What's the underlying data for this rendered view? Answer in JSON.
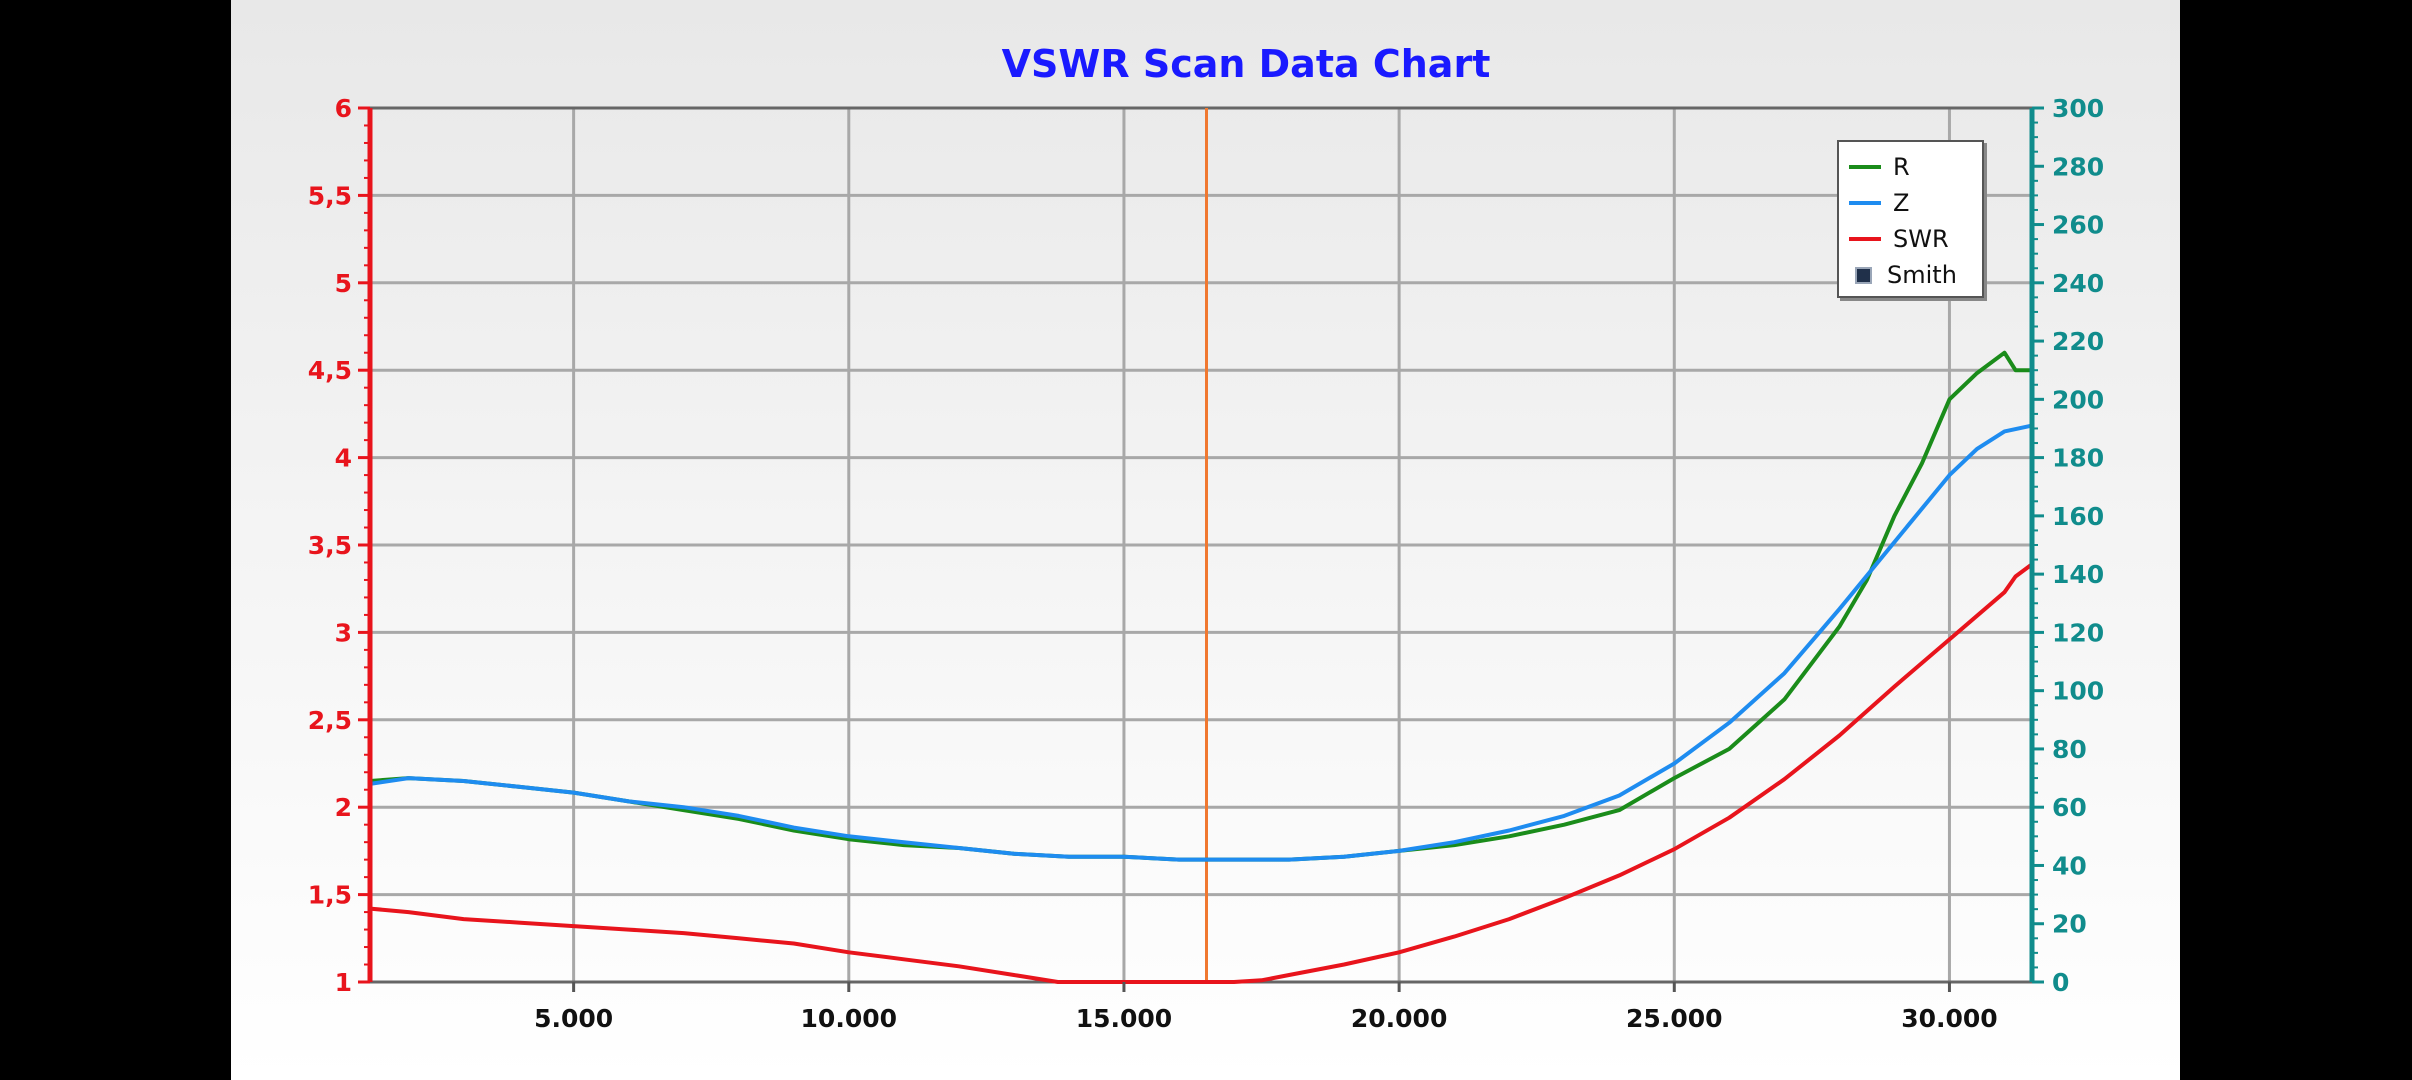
{
  "chart_data": {
    "type": "line",
    "title": "VSWR Scan Data Chart",
    "x": {
      "lim": [
        1300,
        31500
      ],
      "ticks": [
        5000,
        10000,
        15000,
        20000,
        25000,
        30000
      ],
      "tick_labels": [
        "5.000",
        "10.000",
        "15.000",
        "20.000",
        "25.000",
        "30.000"
      ]
    },
    "y_left": {
      "lim": [
        1,
        6
      ],
      "ticks": [
        1,
        1.5,
        2,
        2.5,
        3,
        3.5,
        4,
        4.5,
        5,
        5.5,
        6
      ],
      "tick_labels": [
        "1",
        "1,5",
        "2",
        "2,5",
        "3",
        "3,5",
        "4",
        "4,5",
        "5",
        "5,5",
        "6"
      ],
      "color": "#e8141c"
    },
    "y_right": {
      "lim": [
        0,
        300
      ],
      "ticks": [
        0,
        20,
        40,
        60,
        80,
        100,
        120,
        140,
        160,
        180,
        200,
        220,
        240,
        260,
        280,
        300
      ],
      "tick_labels": [
        "0",
        "20",
        "40",
        "60",
        "80",
        "100",
        "120",
        "140",
        "160",
        "180",
        "200",
        "220",
        "240",
        "260",
        "280",
        "300"
      ],
      "color": "#108c8c"
    },
    "grid": true,
    "legend_position": "top-right",
    "marker_x": 16500,
    "marker_color": "#f07830",
    "series": [
      {
        "name": "R",
        "axis": "right",
        "color": "#1a8c1a",
        "x": [
          1300,
          2000,
          3000,
          4000,
          5000,
          6000,
          7000,
          8000,
          9000,
          10000,
          11000,
          12000,
          13000,
          14000,
          15000,
          16000,
          17000,
          18000,
          19000,
          20000,
          21000,
          22000,
          23000,
          24000,
          25000,
          26000,
          27000,
          28000,
          28500,
          29000,
          29500,
          30000,
          30500,
          31000,
          31200,
          31500
        ],
        "y": [
          69,
          70,
          69,
          67,
          65,
          62,
          59,
          56,
          52,
          49,
          47,
          46,
          44,
          43,
          43,
          42,
          42,
          42,
          43,
          45,
          47,
          50,
          54,
          59,
          70,
          80,
          97,
          122,
          138,
          160,
          178,
          200,
          209,
          216,
          210,
          210
        ]
      },
      {
        "name": "Z",
        "axis": "right",
        "color": "#1e8cf0",
        "x": [
          1300,
          2000,
          3000,
          4000,
          5000,
          6000,
          7000,
          8000,
          9000,
          10000,
          11000,
          12000,
          13000,
          14000,
          15000,
          16000,
          17000,
          18000,
          19000,
          20000,
          21000,
          22000,
          23000,
          24000,
          25000,
          26000,
          27000,
          28000,
          29000,
          30000,
          30500,
          31000,
          31500
        ],
        "y": [
          68,
          70,
          69,
          67,
          65,
          62,
          60,
          57,
          53,
          50,
          48,
          46,
          44,
          43,
          43,
          42,
          42,
          42,
          43,
          45,
          48,
          52,
          57,
          64,
          75,
          89,
          106,
          128,
          151,
          174,
          183,
          189,
          191
        ]
      },
      {
        "name": "SWR",
        "axis": "left",
        "color": "#e8141c",
        "x": [
          1300,
          2000,
          3000,
          4000,
          5000,
          6000,
          7000,
          8000,
          9000,
          10000,
          11000,
          12000,
          13000,
          13800,
          14500,
          15000,
          16000,
          17000,
          17500,
          18000,
          19000,
          20000,
          21000,
          22000,
          23000,
          24000,
          25000,
          26000,
          27000,
          28000,
          29000,
          30000,
          31000,
          31200,
          31500
        ],
        "y": [
          1.42,
          1.4,
          1.36,
          1.34,
          1.32,
          1.3,
          1.28,
          1.25,
          1.22,
          1.17,
          1.13,
          1.09,
          1.04,
          1.0,
          1.0,
          1.0,
          1.0,
          1.0,
          1.01,
          1.04,
          1.1,
          1.17,
          1.26,
          1.36,
          1.48,
          1.61,
          1.76,
          1.94,
          2.16,
          2.41,
          2.69,
          2.96,
          3.23,
          3.32,
          3.39
        ]
      }
    ],
    "legend_entries": [
      {
        "name": "R",
        "kind": "line",
        "color": "#1a8c1a"
      },
      {
        "name": "Z",
        "kind": "line",
        "color": "#1e8cf0"
      },
      {
        "name": "SWR",
        "kind": "line",
        "color": "#e8141c"
      },
      {
        "name": "Smith",
        "kind": "box",
        "color": "#20304a"
      }
    ]
  }
}
